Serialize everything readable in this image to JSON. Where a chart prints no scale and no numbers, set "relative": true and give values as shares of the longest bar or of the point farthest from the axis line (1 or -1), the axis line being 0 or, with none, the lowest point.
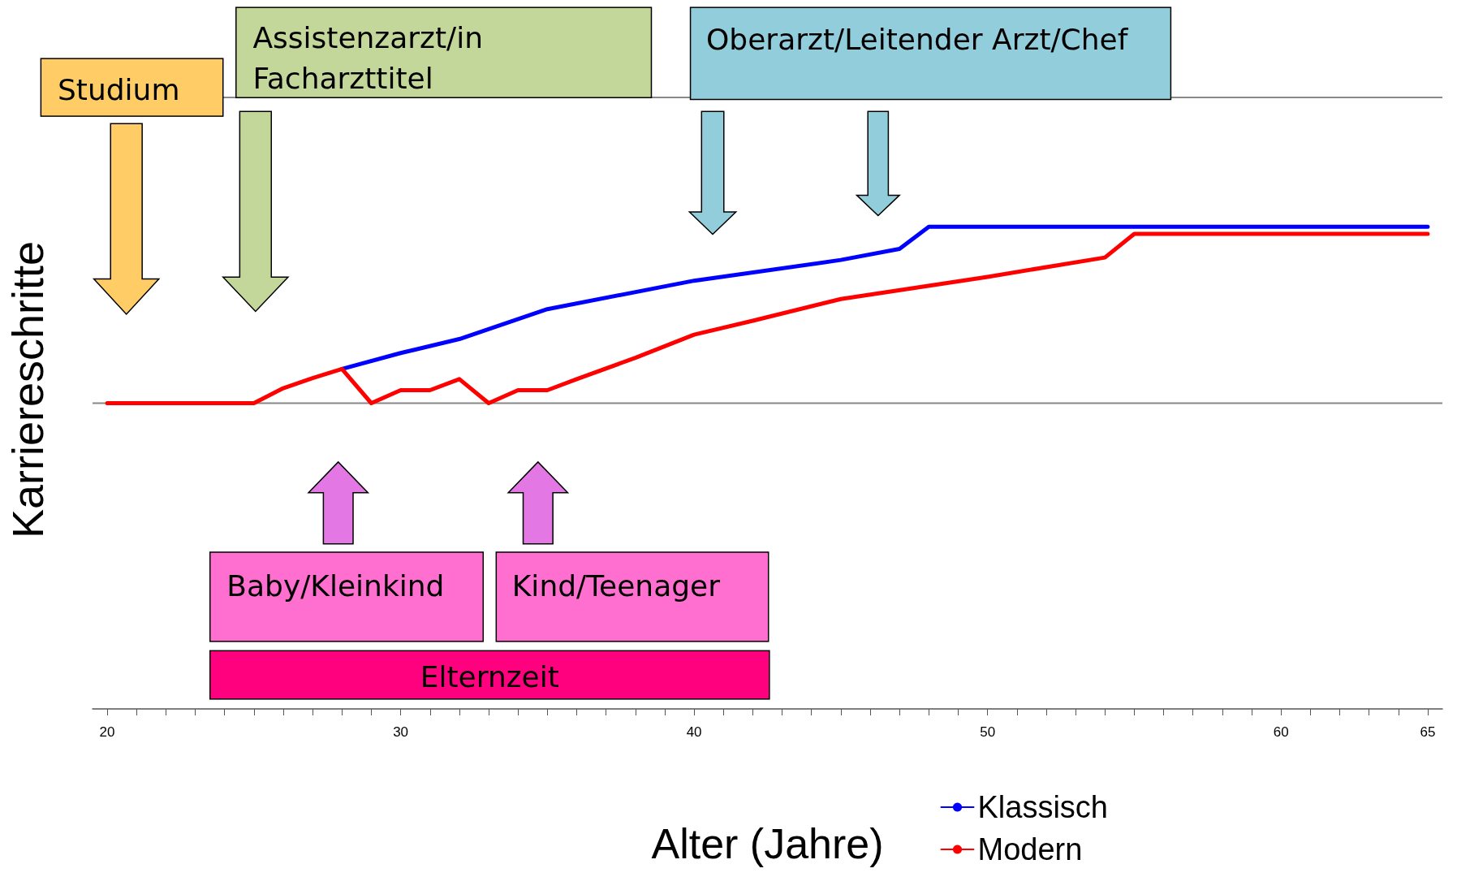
{
  "chart_data": {
    "type": "line",
    "relative": true,
    "xlabel": "Alter (Jahre)",
    "ylabel": "Karriereschritte",
    "xlim": [
      19.5,
      65.5
    ],
    "xticks": [
      20,
      {
        "value": 21,
        "label": null
      },
      {
        "value": 22,
        "label": null
      },
      {
        "value": 23,
        "label": null
      },
      {
        "value": 24,
        "label": null
      },
      {
        "value": 25,
        "label": null
      },
      {
        "value": 26,
        "label": null
      },
      {
        "value": 27,
        "label": null
      },
      {
        "value": 28,
        "label": null
      },
      {
        "value": 29,
        "label": null
      },
      30,
      {
        "value": 31,
        "label": null
      },
      {
        "value": 32,
        "label": null
      },
      {
        "value": 33,
        "label": null
      },
      {
        "value": 34,
        "label": null
      },
      {
        "value": 35,
        "label": null
      },
      {
        "value": 36,
        "label": null
      },
      {
        "value": 37,
        "label": null
      },
      {
        "value": 38,
        "label": null
      },
      {
        "value": 39,
        "label": null
      },
      40,
      {
        "value": 41,
        "label": null
      },
      {
        "value": 42,
        "label": null
      },
      {
        "value": 43,
        "label": null
      },
      {
        "value": 44,
        "label": null
      },
      {
        "value": 45,
        "label": null
      },
      {
        "value": 46,
        "label": null
      },
      {
        "value": 47,
        "label": null
      },
      {
        "value": 48,
        "label": null
      },
      {
        "value": 49,
        "label": null
      },
      50,
      {
        "value": 51,
        "label": null
      },
      {
        "value": 52,
        "label": null
      },
      {
        "value": 53,
        "label": null
      },
      {
        "value": 54,
        "label": null
      },
      {
        "value": 55,
        "label": null
      },
      {
        "value": 56,
        "label": null
      },
      {
        "value": 57,
        "label": null
      },
      {
        "value": 58,
        "label": null
      },
      {
        "value": 59,
        "label": null
      },
      60,
      {
        "value": 61,
        "label": null
      },
      {
        "value": 62,
        "label": null
      },
      {
        "value": 63,
        "label": null
      },
      {
        "value": 64,
        "label": null
      },
      65
    ],
    "series": [
      {
        "name": "Klassisch",
        "color": "#0000ff",
        "x": [
          28,
          30,
          32,
          35,
          40,
          45,
          47,
          48,
          65
        ],
        "values": [
          0.705,
          0.738,
          0.767,
          0.829,
          0.888,
          0.931,
          0.954,
          1,
          1
        ]
      },
      {
        "name": "Modern",
        "color": "#ff0000",
        "x": [
          20,
          25,
          26,
          27,
          28,
          29,
          30,
          31,
          32,
          33,
          34,
          35,
          36,
          38,
          40,
          42,
          45,
          50,
          54,
          55,
          65
        ],
        "values": [
          0.634,
          0.634,
          0.665,
          0.686,
          0.705,
          0.634,
          0.661,
          0.661,
          0.684,
          0.634,
          0.661,
          0.661,
          0.684,
          0.728,
          0.776,
          0.805,
          0.85,
          0.896,
          0.936,
          0.985,
          0.985
        ]
      }
    ],
    "ref_lines": [
      {
        "axis": "y",
        "value": 0.634,
        "color": "#888888"
      },
      {
        "axis": "y",
        "value": 1.268,
        "color": "#888888"
      }
    ],
    "annotations": [
      "Studium",
      "Assistenzarzt/in\nFacharzttitel",
      "Oberarzt/Leitender Arzt/Chef",
      "Baby/Kleinkind",
      "Kind/Teenager",
      "Elternzeit"
    ],
    "legend": "bottom right",
    "grid": false,
    "marker": "none",
    "line_style": "solid"
  }
}
